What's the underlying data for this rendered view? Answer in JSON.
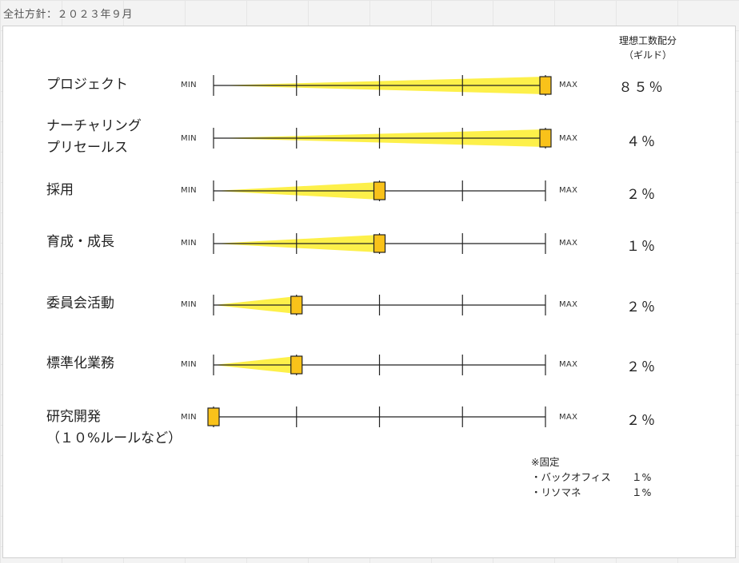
{
  "frame_title": "全社方針：２０２３年９月",
  "column_header": [
    "理想工数配分",
    "（ギルド）"
  ],
  "min_label": "MIN",
  "max_label": "MAX",
  "rows": [
    {
      "label": [
        "プロジェクト"
      ],
      "level": 1.0,
      "percent": "８５％"
    },
    {
      "label": [
        "ナーチャリング",
        "プリセールス"
      ],
      "level": 1.0,
      "percent": "４％"
    },
    {
      "label": [
        "採用"
      ],
      "level": 0.5,
      "percent": "２％"
    },
    {
      "label": [
        "育成・成長"
      ],
      "level": 0.5,
      "percent": "１％"
    },
    {
      "label": [
        "委員会活動"
      ],
      "level": 0.25,
      "percent": "２％"
    },
    {
      "label": [
        "標準化業務"
      ],
      "level": 0.25,
      "percent": "２％"
    },
    {
      "label": [
        "研究開発",
        "（１０%ルールなど）"
      ],
      "level": 0.0,
      "percent": "２％"
    }
  ],
  "notes": {
    "title": "※固定",
    "items": [
      {
        "label": "・バックオフィス",
        "value": "１%"
      },
      {
        "label": "・リソマネ",
        "value": "１%"
      }
    ]
  },
  "colors": {
    "wedge": "#fdf04a",
    "handle": "#f9c21a",
    "line": "#222222"
  }
}
